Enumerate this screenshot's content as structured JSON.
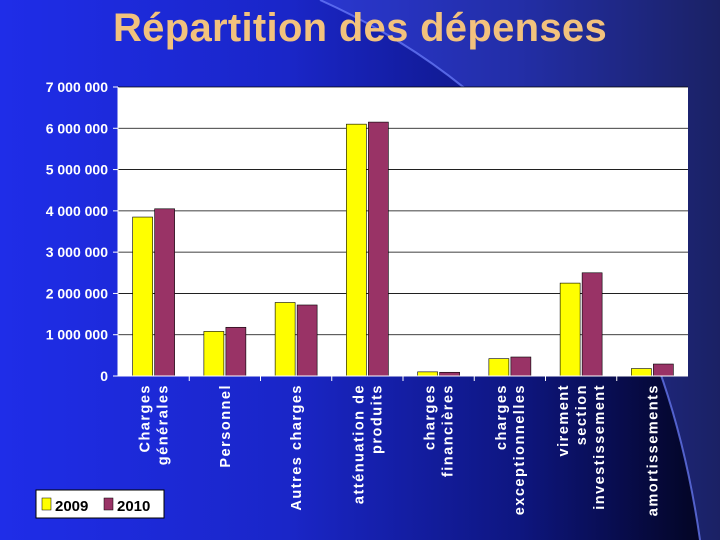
{
  "slide": {
    "title": "Répartition des dépenses"
  },
  "colors": {
    "series_2009": "#ffff00",
    "series_2010": "#993366",
    "bar_edge": "#000000",
    "plot_bg": "#ffffff",
    "gridline": "#000000"
  },
  "chart_data": {
    "type": "bar",
    "title": "",
    "xlabel": "",
    "ylabel": "",
    "ylim": [
      0,
      7000000
    ],
    "yticks": [
      0,
      1000000,
      2000000,
      3000000,
      4000000,
      5000000,
      6000000,
      7000000
    ],
    "ytick_labels": [
      "0",
      "1 000 000",
      "2 000 000",
      "3 000 000",
      "4 000 000",
      "5 000 000",
      "6 000 000",
      "7 000 000"
    ],
    "grid": "horizontal",
    "legend": "bottom-left",
    "categories": [
      [
        "Charges",
        "générales"
      ],
      [
        "Personnel"
      ],
      [
        "Autres charges"
      ],
      [
        "atténuation de",
        "produits"
      ],
      [
        "charges",
        "financières"
      ],
      [
        "charges",
        "exceptionnelles"
      ],
      [
        "virement",
        "section",
        "investissement"
      ],
      [
        "amortissements"
      ]
    ],
    "series": [
      {
        "name": "2009",
        "values": [
          3850000,
          1080000,
          1780000,
          6100000,
          100000,
          420000,
          2250000,
          180000
        ]
      },
      {
        "name": "2010",
        "values": [
          4050000,
          1180000,
          1720000,
          6150000,
          90000,
          460000,
          2500000,
          290000
        ]
      }
    ]
  }
}
